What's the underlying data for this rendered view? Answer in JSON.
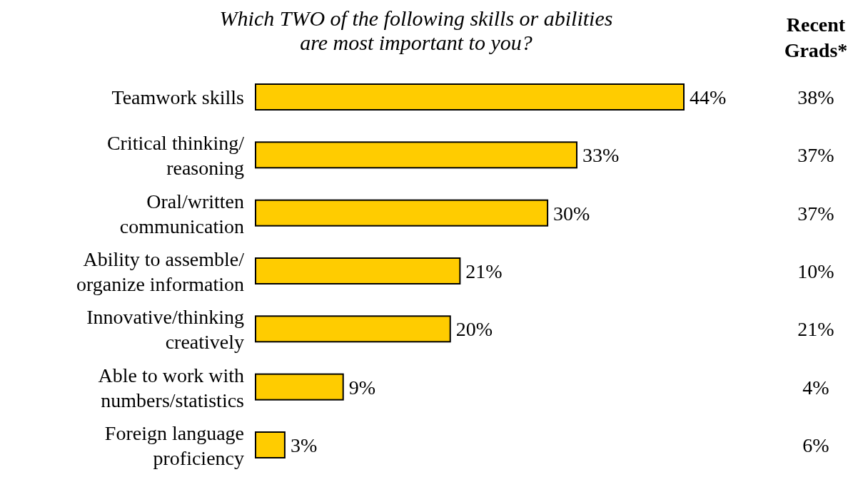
{
  "chart_data": {
    "type": "bar",
    "orientation": "horizontal",
    "title": "Which TWO of the following skills or abilities are most important to you?",
    "categories": [
      "Teamwork skills",
      "Critical thinking/ reasoning",
      "Oral/written communication",
      "Ability to assemble/ organize information",
      "Innovative/thinking creatively",
      "Able to work with numbers/statistics",
      "Foreign language proficiency"
    ],
    "series": [
      {
        "color": "#ffcc00",
        "values": [
          44,
          33,
          30,
          21,
          20,
          9,
          3
        ],
        "value_labels": [
          "44%",
          "33%",
          "30%",
          "21%",
          "20%",
          "9%",
          "3%"
        ]
      }
    ],
    "annotations": [
      "Recent Grads*",
      "38%",
      "37%",
      "37%",
      "10%",
      "21%",
      "4%",
      "6%"
    ],
    "grid": false,
    "legend": false
  }
}
